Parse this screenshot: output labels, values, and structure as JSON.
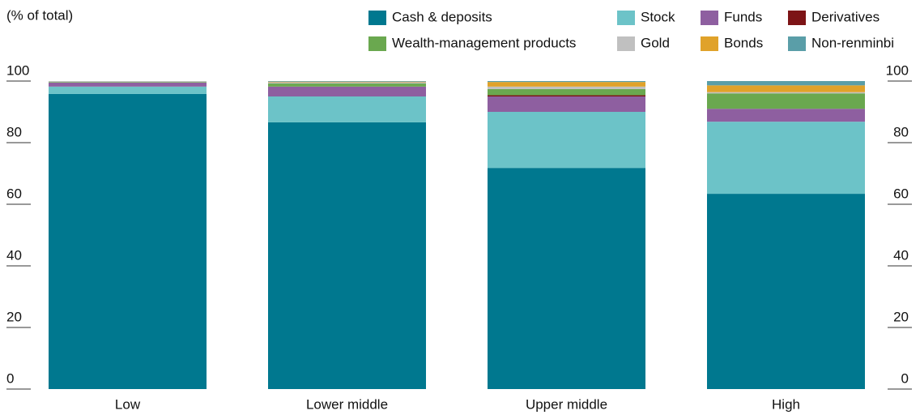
{
  "chart_data": {
    "type": "bar",
    "stacked": true,
    "subtitle": "(% of total)",
    "categories": [
      "Low",
      "Lower middle",
      "Upper middle",
      "High"
    ],
    "series": [
      {
        "name": "Cash & deposits",
        "color": "#00788f",
        "values": [
          95.8,
          86.6,
          71.8,
          63.4
        ]
      },
      {
        "name": "Stock",
        "color": "#6cc3c8",
        "values": [
          2.4,
          8.4,
          18.2,
          23.4
        ]
      },
      {
        "name": "Funds",
        "color": "#8e5fa0",
        "values": [
          1.3,
          3.2,
          5,
          4.2
        ]
      },
      {
        "name": "Derivatives",
        "color": "#7d1416",
        "values": [
          0,
          0,
          0.4,
          0
        ]
      },
      {
        "name": "Wealth-management products",
        "color": "#6aa84f",
        "values": [
          0.2,
          1,
          2,
          5
        ]
      },
      {
        "name": "Gold",
        "color": "#c0c0c0",
        "values": [
          0.3,
          0.4,
          0.8,
          0.4
        ]
      },
      {
        "name": "Bonds",
        "color": "#e0a22a",
        "values": [
          0,
          0.2,
          1.5,
          2.2
        ]
      },
      {
        "name": "Non-renminbi",
        "color": "#5a9ea8",
        "values": [
          0,
          0.2,
          0.3,
          1.4
        ]
      }
    ],
    "ylim": [
      0,
      100
    ],
    "yticks": [
      0,
      20,
      40,
      60,
      80,
      100
    ]
  }
}
